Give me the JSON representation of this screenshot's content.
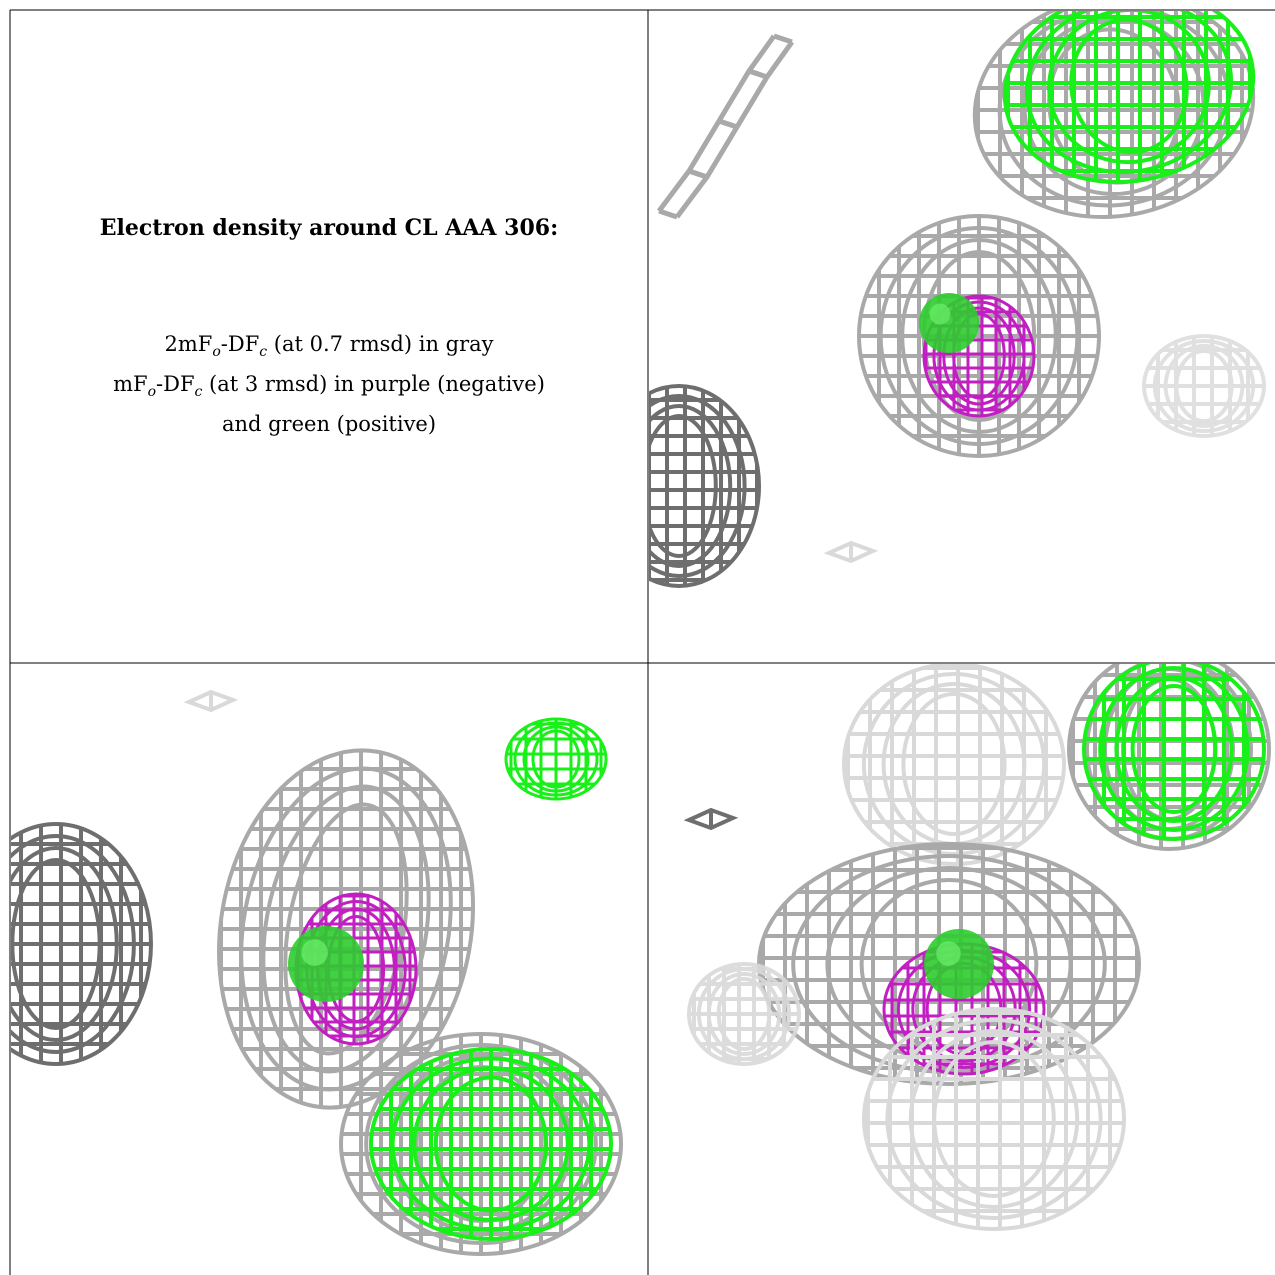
{
  "legend": {
    "title": "Electron density around CL AAA 306:",
    "line1": {
      "a": "2mF",
      "sub1": "o",
      "b": "-DF",
      "sub2": "c",
      "c": " (at 0.7 rmsd) in gray"
    },
    "line2": {
      "a": "mF",
      "sub1": "o",
      "b": "-DF",
      "sub2": "c",
      "c": " (at 3 rmsd) in purple (negative)"
    },
    "line3": "and green (positive)"
  },
  "colors": {
    "gray_mesh": "#a9a9a9",
    "dark_gray_mesh": "#6e6e6e",
    "light_gray_mesh": "#d9d9d9",
    "green_mesh": "#19f019",
    "purple_mesh": "#c21fc2",
    "green_sphere": "#2ecc2e",
    "grid_line": "#000000"
  },
  "panels": [
    {
      "name": "view-top-right"
    },
    {
      "name": "view-bottom-left"
    },
    {
      "name": "view-bottom-right"
    }
  ]
}
